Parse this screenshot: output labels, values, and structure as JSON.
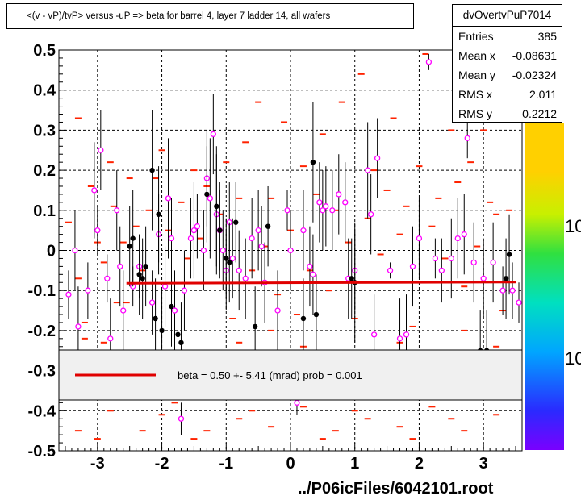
{
  "title": "<(v - vP)/tvP> versus  -uP => beta for barrel 4, layer 7 ladder 14, all wafers",
  "stats": {
    "name": "dvOvertvPuP7014",
    "rows": [
      {
        "label": "Entries",
        "value": "385"
      },
      {
        "label": "Mean x",
        "value": "-0.08631"
      },
      {
        "label": "Mean y",
        "value": "-0.02324"
      },
      {
        "label": "RMS x",
        "value": "2.011"
      },
      {
        "label": "RMS y",
        "value": "0.2212"
      }
    ]
  },
  "fit_legend": "beta =    0.50 +-  5.41 (mrad) prob = 0.001",
  "footer": "../P06icFiles/6042101.root",
  "palette_labels": [
    "10",
    "10"
  ],
  "colors": {
    "fit_line": "#e00000",
    "profile_marker": "#ff00ff",
    "scatter": "#ff2200"
  },
  "chart_data": {
    "type": "scatter",
    "xlim": [
      -3.6,
      3.6
    ],
    "ylim": [
      -0.5,
      0.5
    ],
    "x_ticks": [
      -3,
      -2,
      -1,
      0,
      1,
      2,
      3
    ],
    "y_ticks": [
      -0.5,
      -0.4,
      -0.3,
      -0.2,
      -0.1,
      0,
      0.1,
      0.2,
      0.3,
      0.4,
      0.5
    ],
    "x_tick_labels": [
      "-3",
      "-2",
      "-1",
      "0",
      "1",
      "2",
      "3"
    ],
    "y_tick_labels": [
      "-0.5",
      "-0.4",
      "-0.3",
      "-0.2",
      "-0.1",
      "0",
      "0.1",
      "0.2",
      "0.3",
      "0.4",
      "0.5"
    ],
    "grid": true,
    "fit_line": {
      "x": [
        -2.55,
        3.5
      ],
      "y": [
        -0.082,
        -0.079
      ]
    },
    "scatter_cells": [
      [
        -3.3,
        0.33
      ],
      [
        -3.45,
        0.07
      ],
      [
        -3.3,
        -0.07
      ],
      [
        -3.2,
        -0.22
      ],
      [
        -3.1,
        0.16
      ],
      [
        -3.0,
        0.02
      ],
      [
        -2.9,
        -0.03
      ],
      [
        -2.8,
        0.22
      ],
      [
        -2.75,
        0.11
      ],
      [
        -2.6,
        0.02
      ],
      [
        -2.55,
        -0.13
      ],
      [
        -2.5,
        0.18
      ],
      [
        -2.4,
        0.06
      ],
      [
        -2.3,
        -0.05
      ],
      [
        -2.2,
        0.1
      ],
      [
        -2.1,
        0.18
      ],
      [
        -2.0,
        0.25
      ],
      [
        -1.9,
        0.05
      ],
      [
        -1.8,
        -0.15
      ],
      [
        -1.7,
        0.12
      ],
      [
        -1.6,
        -0.02
      ],
      [
        -1.5,
        0.2
      ],
      [
        -1.4,
        0.03
      ],
      [
        -1.3,
        0.16
      ],
      [
        -1.25,
        -0.28
      ],
      [
        -1.1,
        0.09
      ],
      [
        -1.0,
        0.22
      ],
      [
        -0.9,
        -0.17
      ],
      [
        -0.8,
        0.13
      ],
      [
        -0.7,
        0.27
      ],
      [
        -0.6,
        -0.05
      ],
      [
        -0.5,
        0.37
      ],
      [
        -0.4,
        0.01
      ],
      [
        -0.3,
        0.13
      ],
      [
        -0.2,
        -0.11
      ],
      [
        -0.1,
        0.32
      ],
      [
        0.0,
        0.05
      ],
      [
        0.1,
        -0.16
      ],
      [
        0.2,
        0.21
      ],
      [
        0.3,
        -0.05
      ],
      [
        0.4,
        0.14
      ],
      [
        0.5,
        0.29
      ],
      [
        0.6,
        -0.1
      ],
      [
        0.7,
        0.1
      ],
      [
        0.8,
        0.37
      ],
      [
        0.9,
        0.02
      ],
      [
        1.0,
        -0.17
      ],
      [
        1.1,
        0.44
      ],
      [
        1.2,
        0.08
      ],
      [
        1.3,
        0.2
      ],
      [
        1.4,
        -0.01
      ],
      [
        1.5,
        0.15
      ],
      [
        1.6,
        0.33
      ],
      [
        1.7,
        0.04
      ],
      [
        1.8,
        0.11
      ],
      [
        1.9,
        -0.19
      ],
      [
        2.0,
        0.21
      ],
      [
        2.1,
        0.49
      ],
      [
        2.2,
        0.06
      ],
      [
        2.3,
        0.13
      ],
      [
        2.4,
        -0.02
      ],
      [
        2.5,
        0.3
      ],
      [
        2.6,
        0.17
      ],
      [
        2.7,
        -0.09
      ],
      [
        2.8,
        0.22
      ],
      [
        2.9,
        0.01
      ],
      [
        3.0,
        0.3
      ],
      [
        3.1,
        0.12
      ],
      [
        3.2,
        0.09
      ],
      [
        3.3,
        -0.15
      ],
      [
        3.4,
        0.1
      ],
      [
        -3.2,
        -0.18
      ],
      [
        -2.9,
        -0.23
      ],
      [
        -2.7,
        -0.13
      ],
      [
        -2.2,
        -0.28
      ],
      [
        -1.8,
        -0.3
      ],
      [
        -1.3,
        -0.25
      ],
      [
        -0.8,
        -0.23
      ],
      [
        -0.3,
        -0.2
      ],
      [
        0.2,
        -0.24
      ],
      [
        0.7,
        -0.3
      ],
      [
        1.2,
        -0.26
      ],
      [
        1.7,
        -0.23
      ],
      [
        2.2,
        -0.25
      ],
      [
        2.7,
        -0.2
      ],
      [
        3.2,
        -0.24
      ],
      [
        -3.3,
        -0.45
      ],
      [
        -2.8,
        -0.4
      ],
      [
        -2.3,
        -0.45
      ],
      [
        -1.8,
        -0.38
      ],
      [
        -1.3,
        -0.45
      ],
      [
        -0.8,
        -0.42
      ],
      [
        -0.3,
        -0.44
      ],
      [
        0.2,
        -0.39
      ],
      [
        0.7,
        -0.45
      ],
      [
        1.2,
        -0.42
      ],
      [
        1.7,
        -0.44
      ],
      [
        2.2,
        -0.39
      ],
      [
        2.7,
        -0.45
      ],
      [
        3.2,
        -0.41
      ],
      [
        -3.0,
        -0.47
      ],
      [
        -1.5,
        -0.47
      ],
      [
        0.5,
        -0.47
      ],
      [
        1.9,
        -0.47
      ],
      [
        -2.0,
        -0.41
      ],
      [
        -0.6,
        -0.4
      ],
      [
        1.0,
        -0.4
      ],
      [
        2.5,
        -0.42
      ],
      [
        -3.4,
        -0.3
      ],
      [
        3.4,
        -0.33
      ]
    ],
    "profile_magenta": [
      {
        "x": -3.45,
        "y": -0.11,
        "e": 0.06
      },
      {
        "x": -3.35,
        "y": 0.0,
        "e": 0.1
      },
      {
        "x": -3.3,
        "y": -0.19,
        "e": 0.1
      },
      {
        "x": -3.15,
        "y": -0.1,
        "e": 0.07
      },
      {
        "x": -3.05,
        "y": 0.15,
        "e": 0.12
      },
      {
        "x": -3.0,
        "y": 0.05,
        "e": 0.06
      },
      {
        "x": -2.95,
        "y": 0.25,
        "e": 0.1
      },
      {
        "x": -2.85,
        "y": -0.07,
        "e": 0.06
      },
      {
        "x": -2.8,
        "y": -0.22,
        "e": 0.1
      },
      {
        "x": -2.7,
        "y": 0.1,
        "e": 0.1
      },
      {
        "x": -2.65,
        "y": -0.04,
        "e": 0.1
      },
      {
        "x": -2.6,
        "y": -0.15,
        "e": 0.1
      },
      {
        "x": -2.45,
        "y": -0.09,
        "e": 0.05
      },
      {
        "x": -2.35,
        "y": -0.04,
        "e": 0.08
      },
      {
        "x": -2.15,
        "y": -0.13,
        "e": 0.08
      },
      {
        "x": -2.05,
        "y": 0.04,
        "e": 0.1
      },
      {
        "x": -1.95,
        "y": -0.09,
        "e": 0.1
      },
      {
        "x": -1.9,
        "y": 0.13,
        "e": 0.15
      },
      {
        "x": -1.85,
        "y": 0.03,
        "e": 0.1
      },
      {
        "x": -1.8,
        "y": -0.15,
        "e": 0.1
      },
      {
        "x": -1.7,
        "y": -0.42,
        "e": 0.04
      },
      {
        "x": -1.65,
        "y": -0.1,
        "e": 0.1
      },
      {
        "x": -1.55,
        "y": 0.03,
        "e": 0.1
      },
      {
        "x": -1.5,
        "y": 0.05,
        "e": 0.12
      },
      {
        "x": -1.45,
        "y": 0.06,
        "e": 0.08
      },
      {
        "x": -1.35,
        "y": 0.0,
        "e": 0.1
      },
      {
        "x": -1.3,
        "y": 0.18,
        "e": 0.12
      },
      {
        "x": -1.25,
        "y": 0.13,
        "e": 0.15
      },
      {
        "x": -1.2,
        "y": 0.29,
        "e": 0.1
      },
      {
        "x": -1.15,
        "y": 0.09,
        "e": 0.15
      },
      {
        "x": -1.1,
        "y": 0.05,
        "e": 0.1
      },
      {
        "x": -1.05,
        "y": 0.0,
        "e": 0.1
      },
      {
        "x": -1.0,
        "y": -0.05,
        "e": 0.1
      },
      {
        "x": -0.95,
        "y": 0.07,
        "e": 0.1
      },
      {
        "x": -0.9,
        "y": -0.02,
        "e": 0.1
      },
      {
        "x": -0.8,
        "y": -0.05,
        "e": 0.1
      },
      {
        "x": -0.7,
        "y": -0.07,
        "e": 0.1
      },
      {
        "x": -0.6,
        "y": 0.03,
        "e": 0.1
      },
      {
        "x": -0.5,
        "y": 0.05,
        "e": 0.1
      },
      {
        "x": -0.45,
        "y": 0.01,
        "e": 0.1
      },
      {
        "x": -0.4,
        "y": -0.08,
        "e": 0.1
      },
      {
        "x": -0.2,
        "y": -0.15,
        "e": 0.1
      },
      {
        "x": -0.05,
        "y": 0.1,
        "e": 0.05
      },
      {
        "x": 0.0,
        "y": 0.0,
        "e": 0.1
      },
      {
        "x": 0.1,
        "y": -0.38,
        "e": 0.03
      },
      {
        "x": 0.2,
        "y": 0.05,
        "e": 0.1
      },
      {
        "x": 0.3,
        "y": -0.04,
        "e": 0.1
      },
      {
        "x": 0.35,
        "y": -0.06,
        "e": 0.1
      },
      {
        "x": 0.45,
        "y": 0.12,
        "e": 0.1
      },
      {
        "x": 0.5,
        "y": 0.1,
        "e": 0.1
      },
      {
        "x": 0.55,
        "y": 0.11,
        "e": 0.1
      },
      {
        "x": 0.65,
        "y": 0.1,
        "e": 0.1
      },
      {
        "x": 0.75,
        "y": 0.14,
        "e": 0.1
      },
      {
        "x": 0.85,
        "y": 0.12,
        "e": 0.1
      },
      {
        "x": 0.9,
        "y": -0.07,
        "e": 0.1
      },
      {
        "x": 1.0,
        "y": -0.05,
        "e": 0.1
      },
      {
        "x": 1.2,
        "y": 0.2,
        "e": 0.12
      },
      {
        "x": 1.25,
        "y": 0.09,
        "e": 0.1
      },
      {
        "x": 1.35,
        "y": 0.23,
        "e": 0.1
      },
      {
        "x": 1.3,
        "y": -0.21,
        "e": 0.1
      },
      {
        "x": 1.55,
        "y": -0.05,
        "e": 0.02
      },
      {
        "x": 1.7,
        "y": -0.22,
        "e": 0.1
      },
      {
        "x": 1.8,
        "y": -0.21,
        "e": 0.1
      },
      {
        "x": 1.9,
        "y": -0.04,
        "e": 0.1
      },
      {
        "x": 2.0,
        "y": 0.03,
        "e": 0.1
      },
      {
        "x": 2.15,
        "y": 0.47,
        "e": 0.02
      },
      {
        "x": 2.25,
        "y": -0.02,
        "e": 0.05
      },
      {
        "x": 2.35,
        "y": -0.05,
        "e": 0.08
      },
      {
        "x": 2.5,
        "y": -0.02,
        "e": 0.1
      },
      {
        "x": 2.6,
        "y": 0.03,
        "e": 0.1
      },
      {
        "x": 2.7,
        "y": 0.04,
        "e": 0.1
      },
      {
        "x": 2.75,
        "y": 0.28,
        "e": 0.05
      },
      {
        "x": 2.85,
        "y": -0.03,
        "e": 0.1
      },
      {
        "x": 3.0,
        "y": -0.07,
        "e": 0.1
      },
      {
        "x": 3.15,
        "y": -0.03,
        "e": 0.1
      },
      {
        "x": 3.3,
        "y": -0.1,
        "e": 0.06
      },
      {
        "x": 3.45,
        "y": -0.1,
        "e": 0.07
      },
      {
        "x": 3.55,
        "y": -0.13,
        "e": 0.05
      }
    ],
    "profile_black": [
      {
        "x": -2.5,
        "y": 0.01,
        "e": 0.1
      },
      {
        "x": -2.45,
        "y": 0.03,
        "e": 0.12
      },
      {
        "x": -2.35,
        "y": -0.06,
        "e": 0.1
      },
      {
        "x": -2.3,
        "y": -0.07,
        "e": 0.1
      },
      {
        "x": -2.25,
        "y": -0.04,
        "e": 0.1
      },
      {
        "x": -2.15,
        "y": 0.2,
        "e": 0.15
      },
      {
        "x": -2.1,
        "y": -0.17,
        "e": 0.1
      },
      {
        "x": -2.05,
        "y": 0.09,
        "e": 0.12
      },
      {
        "x": -2.0,
        "y": -0.2,
        "e": 0.1
      },
      {
        "x": -1.85,
        "y": -0.14,
        "e": 0.1
      },
      {
        "x": -1.75,
        "y": -0.21,
        "e": 0.1
      },
      {
        "x": -1.7,
        "y": -0.23,
        "e": 0.1
      },
      {
        "x": -1.3,
        "y": 0.14,
        "e": 0.12
      },
      {
        "x": -1.15,
        "y": 0.11,
        "e": 0.15
      },
      {
        "x": -1.1,
        "y": 0.05,
        "e": 0.12
      },
      {
        "x": -1.0,
        "y": -0.02,
        "e": 0.1
      },
      {
        "x": -0.95,
        "y": -0.03,
        "e": 0.1
      },
      {
        "x": -0.85,
        "y": 0.07,
        "e": 0.1
      },
      {
        "x": -0.55,
        "y": -0.19,
        "e": 0.1
      },
      {
        "x": -0.35,
        "y": 0.06,
        "e": 0.1
      },
      {
        "x": 0.2,
        "y": -0.17,
        "e": 0.1
      },
      {
        "x": 0.35,
        "y": 0.22,
        "e": 0.15
      },
      {
        "x": 0.4,
        "y": -0.16,
        "e": 0.1
      },
      {
        "x": 0.95,
        "y": -0.07,
        "e": 0.1
      },
      {
        "x": 1.0,
        "y": -0.08,
        "e": 0.15
      },
      {
        "x": 2.95,
        "y": -0.25,
        "e": 0.1
      },
      {
        "x": 3.05,
        "y": -0.25,
        "e": 0.1
      },
      {
        "x": 3.35,
        "y": -0.07,
        "e": 0.1
      },
      {
        "x": 3.4,
        "y": -0.01,
        "e": 0.1
      }
    ]
  }
}
